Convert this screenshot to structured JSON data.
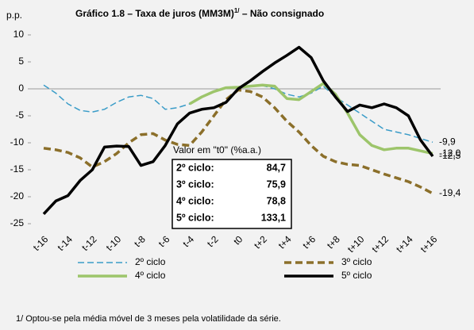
{
  "chart_data": {
    "type": "line",
    "title": [
      "Gráfico 1.8 – Taxa de juros (MM3M)",
      "1/",
      " – Não consignado"
    ],
    "y_label": "p.p.",
    "categories": [
      "t-16",
      null,
      "t-14",
      null,
      "t-12",
      null,
      "t-10",
      null,
      "t-8",
      null,
      "t-6",
      null,
      "t-4",
      null,
      "t-2",
      null,
      "t0",
      null,
      "t+2",
      null,
      "t+4",
      null,
      "t+6",
      null,
      "t+8",
      null,
      "t+10",
      null,
      "t+12",
      null,
      "t+14",
      null,
      "t+16"
    ],
    "ylim": [
      -25,
      10
    ],
    "yticks": [
      -25,
      -20,
      -15,
      -10,
      -5,
      0,
      5,
      10
    ],
    "grid": false,
    "legend": "bottom",
    "series": [
      {
        "name": "2º ciclo",
        "color": "#3a9cc8",
        "style": "dashed",
        "width": 1.5,
        "end_label": "-9,9",
        "values": [
          0.7,
          -0.8,
          -2.8,
          -4.0,
          -4.3,
          -3.8,
          -2.5,
          -1.5,
          -1.2,
          -1.8,
          -3.8,
          -3.5,
          -2.8,
          -1.5,
          -0.5,
          0.2,
          0.3,
          0.5,
          0.6,
          0.0,
          -1.0,
          -1.5,
          -0.8,
          0.5,
          -1.5,
          -3.0,
          -4.5,
          -6.0,
          -7.5,
          -8.0,
          -8.5,
          -9.2,
          -9.9
        ]
      },
      {
        "name": "3º ciclo",
        "color": "#8b6f2a",
        "style": "dashed",
        "width": 3.5,
        "end_label": "-19,4",
        "values": [
          -11.0,
          -11.3,
          -11.8,
          -12.8,
          -14.5,
          -13.5,
          -12.0,
          -10.0,
          -8.5,
          -8.3,
          -9.5,
          -10.3,
          -10.5,
          -8.0,
          -5.0,
          -2.0,
          -0.2,
          -0.5,
          -1.5,
          -3.5,
          -6.0,
          -8.0,
          -10.5,
          -12.5,
          -13.5,
          -14.0,
          -14.2,
          -15.0,
          -15.8,
          -16.5,
          -17.2,
          -18.2,
          -19.4
        ]
      },
      {
        "name": "4º ciclo",
        "color": "#9dc56b",
        "style": "solid",
        "width": 3.5,
        "end_label": "-12,0",
        "values": [
          null,
          null,
          null,
          null,
          null,
          null,
          null,
          null,
          null,
          null,
          null,
          null,
          -2.8,
          -1.5,
          -0.5,
          0.2,
          0.3,
          0.5,
          0.7,
          0.5,
          -1.8,
          -2.0,
          -0.5,
          1.0,
          -1.0,
          -4.5,
          -8.5,
          -10.5,
          -11.3,
          -11.0,
          -11.0,
          -11.5,
          -12.0
        ]
      },
      {
        "name": "5º ciclo",
        "color": "#000000",
        "style": "solid",
        "width": 3.5,
        "end_label": "-12,5",
        "values": [
          -23.2,
          -20.8,
          -19.8,
          -17.0,
          -15.0,
          -10.8,
          -10.6,
          -10.7,
          -14.2,
          -13.5,
          -10.5,
          -6.5,
          -4.5,
          -3.8,
          -3.5,
          -2.5,
          0.0,
          1.5,
          3.2,
          4.8,
          6.2,
          7.7,
          5.8,
          1.5,
          -1.5,
          -4.2,
          -3.0,
          -3.5,
          -2.8,
          -3.5,
          -5.0,
          -9.5,
          -12.5
        ]
      }
    ],
    "annotation": {
      "title": "Valor em \"t0\" (%a.a.)",
      "rows": [
        [
          "2º ciclo:",
          "84,7"
        ],
        [
          "3º ciclo:",
          "75,9"
        ],
        [
          "4º ciclo:",
          "78,8"
        ],
        [
          "5º ciclo:",
          "133,1"
        ]
      ]
    },
    "footnote": "1/ Optou-se pela média móvel de 3 meses pela volatilidade da série."
  }
}
